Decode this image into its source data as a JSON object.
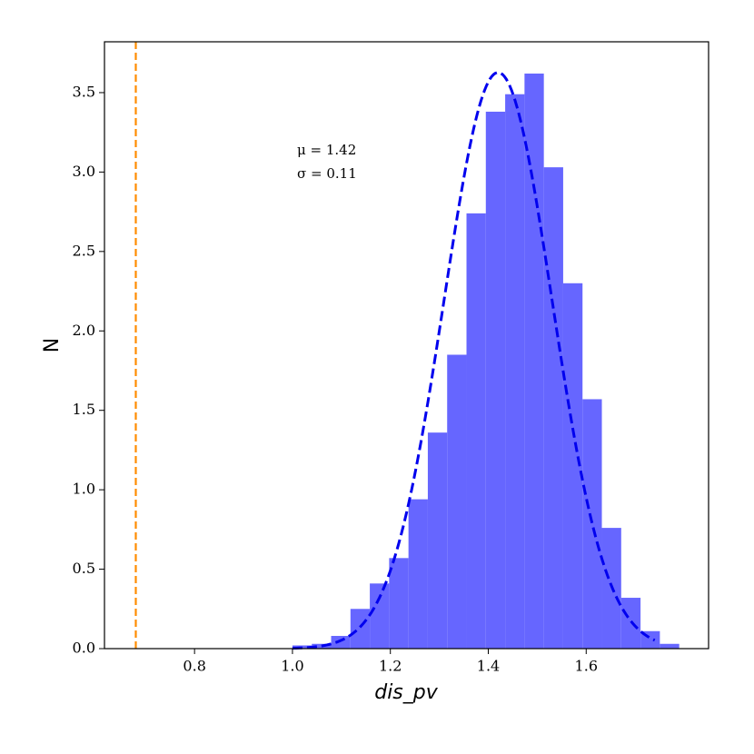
{
  "chart_data": {
    "type": "histogram",
    "x_label": "dis_pv",
    "y_label": "N",
    "bins": [
      1.0,
      1.0395,
      1.079,
      1.1185,
      1.158,
      1.1975,
      1.237,
      1.2765,
      1.316,
      1.3555,
      1.395,
      1.4345,
      1.474,
      1.5135,
      1.553,
      1.5925,
      1.632,
      1.6715,
      1.711,
      1.7505,
      1.79
    ],
    "values": [
      0.02,
      0.03,
      0.08,
      0.25,
      0.41,
      0.57,
      0.94,
      1.36,
      1.85,
      2.74,
      3.38,
      3.49,
      3.62,
      3.03,
      2.3,
      1.57,
      0.76,
      0.32,
      0.11,
      0.03
    ],
    "color": "#6666ff",
    "fit": {
      "mu": 1.42,
      "sigma": 0.11,
      "x_range": [
        1.0,
        1.74
      ],
      "color": "#0000ee"
    },
    "vline": {
      "x": 0.68,
      "color": "#ff8c00"
    },
    "annotations": [
      "μ = 1.42",
      "σ = 0.11"
    ],
    "xlim": [
      0.616,
      1.85
    ],
    "ylim": [
      0,
      3.82
    ],
    "xticks": [
      0.8,
      {
        "value": 1.0,
        "label": "1.0"
      },
      1.2,
      1.4,
      1.6
    ],
    "yticks": [
      {
        "value": 0,
        "label": "0.0"
      },
      {
        "value": 0.5,
        "label": "0.5"
      },
      {
        "value": 1,
        "label": "1.0"
      },
      {
        "value": 1.5,
        "label": "1.5"
      },
      {
        "value": 2,
        "label": "2.0"
      },
      {
        "value": 2.5,
        "label": "2.5"
      },
      {
        "value": 3,
        "label": "3.0"
      },
      {
        "value": 3.5,
        "label": "3.5"
      }
    ],
    "grid": false
  }
}
